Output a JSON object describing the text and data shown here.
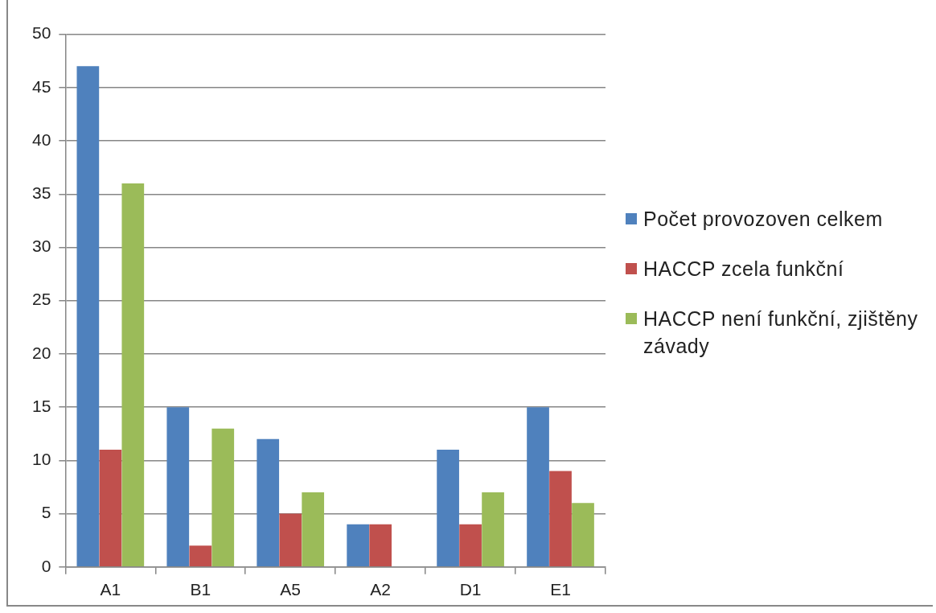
{
  "chart_data": {
    "type": "bar",
    "categories": [
      "A1",
      "B1",
      "A5",
      "A2",
      "D1",
      "E1"
    ],
    "series": [
      {
        "name": "Počet provozoven celkem",
        "color": "#4f81bd",
        "values": [
          47,
          15,
          12,
          4,
          11,
          15
        ]
      },
      {
        "name": "HACCP zcela funkční",
        "color": "#c0504d",
        "values": [
          11,
          2,
          5,
          4,
          4,
          9
        ]
      },
      {
        "name": "HACCP není funkční, zjištěny závady",
        "color": "#9bbb59",
        "values": [
          36,
          13,
          7,
          0,
          7,
          6
        ]
      }
    ],
    "ylim": [
      0,
      50
    ],
    "yticks": [
      0,
      5,
      10,
      15,
      20,
      25,
      30,
      35,
      40,
      45,
      50
    ],
    "grid": "y",
    "legend": "right"
  }
}
